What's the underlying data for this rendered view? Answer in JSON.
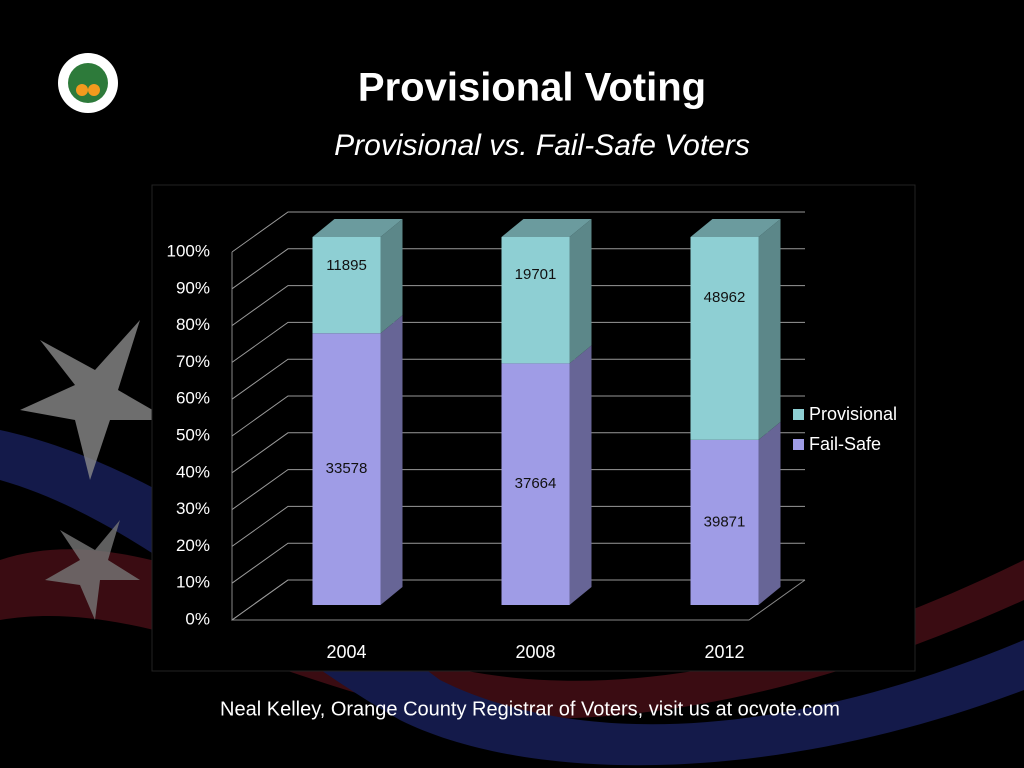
{
  "title": "Provisional Voting",
  "subtitle": "Provisional vs. Fail-Safe Voters",
  "footer": "Neal Kelley, Orange County Registrar of Voters, visit us at ocvote.com",
  "chart_data": {
    "type": "bar",
    "stacked": "percent",
    "categories": [
      "2004",
      "2008",
      "2012"
    ],
    "series": [
      {
        "name": "Fail-Safe",
        "color": "#9f9ce6",
        "values": [
          33578,
          37664,
          39871
        ]
      },
      {
        "name": "Provisional",
        "color": "#8ecfd3",
        "values": [
          11895,
          19701,
          48962
        ]
      }
    ],
    "ylim": [
      0,
      100
    ],
    "yticks": [
      {
        "value": 0,
        "label": "0%"
      },
      {
        "value": 10,
        "label": "10%"
      },
      {
        "value": 20,
        "label": "20%"
      },
      {
        "value": 30,
        "label": "30%"
      },
      {
        "value": 40,
        "label": "40%"
      },
      {
        "value": 50,
        "label": "50%"
      },
      {
        "value": 60,
        "label": "60%"
      },
      {
        "value": 70,
        "label": "70%"
      },
      {
        "value": 80,
        "label": "80%"
      },
      {
        "value": 90,
        "label": "90%"
      },
      {
        "value": 100,
        "label": "100%"
      }
    ],
    "grid": true,
    "legend": "right"
  }
}
